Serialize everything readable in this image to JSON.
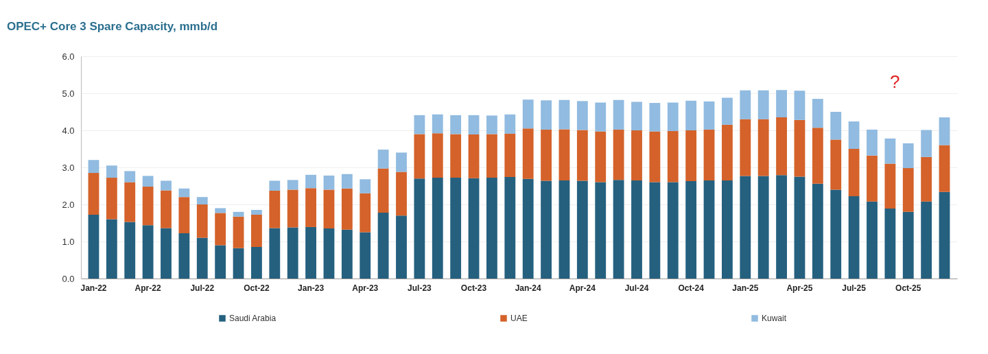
{
  "chart_data": {
    "type": "bar",
    "title": "OPEC+ Core 3 Spare Capacity, mmb/d",
    "stacked": true,
    "categories": [
      "Jan-22",
      null,
      null,
      "Apr-22",
      null,
      null,
      "Jul-22",
      null,
      null,
      "Oct-22",
      null,
      null,
      "Jan-23",
      null,
      null,
      "Apr-23",
      null,
      null,
      "Jul-23",
      null,
      null,
      "Oct-23",
      null,
      null,
      "Jan-24",
      null,
      null,
      "Apr-24",
      null,
      null,
      "Jul-24",
      null,
      null,
      "Oct-24",
      null,
      null,
      "Jan-25",
      null,
      null,
      "Apr-25",
      null,
      null,
      "Jul-25",
      null,
      null,
      "Oct-25",
      null,
      null
    ],
    "series": [
      {
        "name": "Saudi Arabia",
        "color": "#25607f",
        "values": [
          1.72,
          1.6,
          1.53,
          1.44,
          1.36,
          1.22,
          1.1,
          0.9,
          0.82,
          0.85,
          1.36,
          1.38,
          1.39,
          1.35,
          1.32,
          1.25,
          1.78,
          1.7,
          2.7,
          2.72,
          2.72,
          2.71,
          2.72,
          2.74,
          2.69,
          2.64,
          2.65,
          2.64,
          2.6,
          2.66,
          2.65,
          2.6,
          2.6,
          2.63,
          2.65,
          2.65,
          2.77,
          2.77,
          2.79,
          2.75,
          2.56,
          2.4,
          2.22,
          2.08,
          1.89,
          1.8,
          2.08,
          2.34
        ]
      },
      {
        "name": "UAE",
        "color": "#d4622a",
        "values": [
          1.13,
          1.12,
          1.07,
          1.04,
          1.02,
          0.98,
          0.9,
          0.87,
          0.85,
          0.87,
          1.01,
          1.02,
          1.05,
          1.05,
          1.11,
          1.05,
          1.19,
          1.18,
          1.2,
          1.2,
          1.18,
          1.18,
          1.18,
          1.17,
          1.36,
          1.38,
          1.38,
          1.37,
          1.37,
          1.36,
          1.35,
          1.37,
          1.38,
          1.37,
          1.37,
          1.5,
          1.53,
          1.53,
          1.56,
          1.53,
          1.51,
          1.35,
          1.28,
          1.24,
          1.21,
          1.18,
          1.2,
          1.26
        ]
      },
      {
        "name": "Kuwait",
        "color": "#91bbe0",
        "values": [
          0.35,
          0.33,
          0.3,
          0.29,
          0.26,
          0.23,
          0.2,
          0.13,
          0.13,
          0.13,
          0.27,
          0.26,
          0.36,
          0.38,
          0.39,
          0.38,
          0.51,
          0.52,
          0.51,
          0.51,
          0.51,
          0.52,
          0.5,
          0.52,
          0.78,
          0.79,
          0.79,
          0.78,
          0.78,
          0.8,
          0.77,
          0.77,
          0.77,
          0.8,
          0.76,
          0.73,
          0.78,
          0.78,
          0.74,
          0.79,
          0.78,
          0.75,
          0.74,
          0.7,
          0.68,
          0.67,
          0.73,
          0.75
        ]
      }
    ],
    "ylim": [
      0,
      6
    ],
    "yticks": [
      {
        "value": 0,
        "label": "0.0"
      },
      {
        "value": 1,
        "label": "1.0"
      },
      {
        "value": 2,
        "label": "2.0"
      },
      {
        "value": 3,
        "label": "3.0"
      },
      {
        "value": 4,
        "label": "4.0"
      },
      {
        "value": 5,
        "label": "5.0"
      },
      {
        "value": 6,
        "label": "6.0"
      }
    ],
    "grid": "y",
    "legend": "bottom",
    "annotations": [
      "?"
    ]
  }
}
